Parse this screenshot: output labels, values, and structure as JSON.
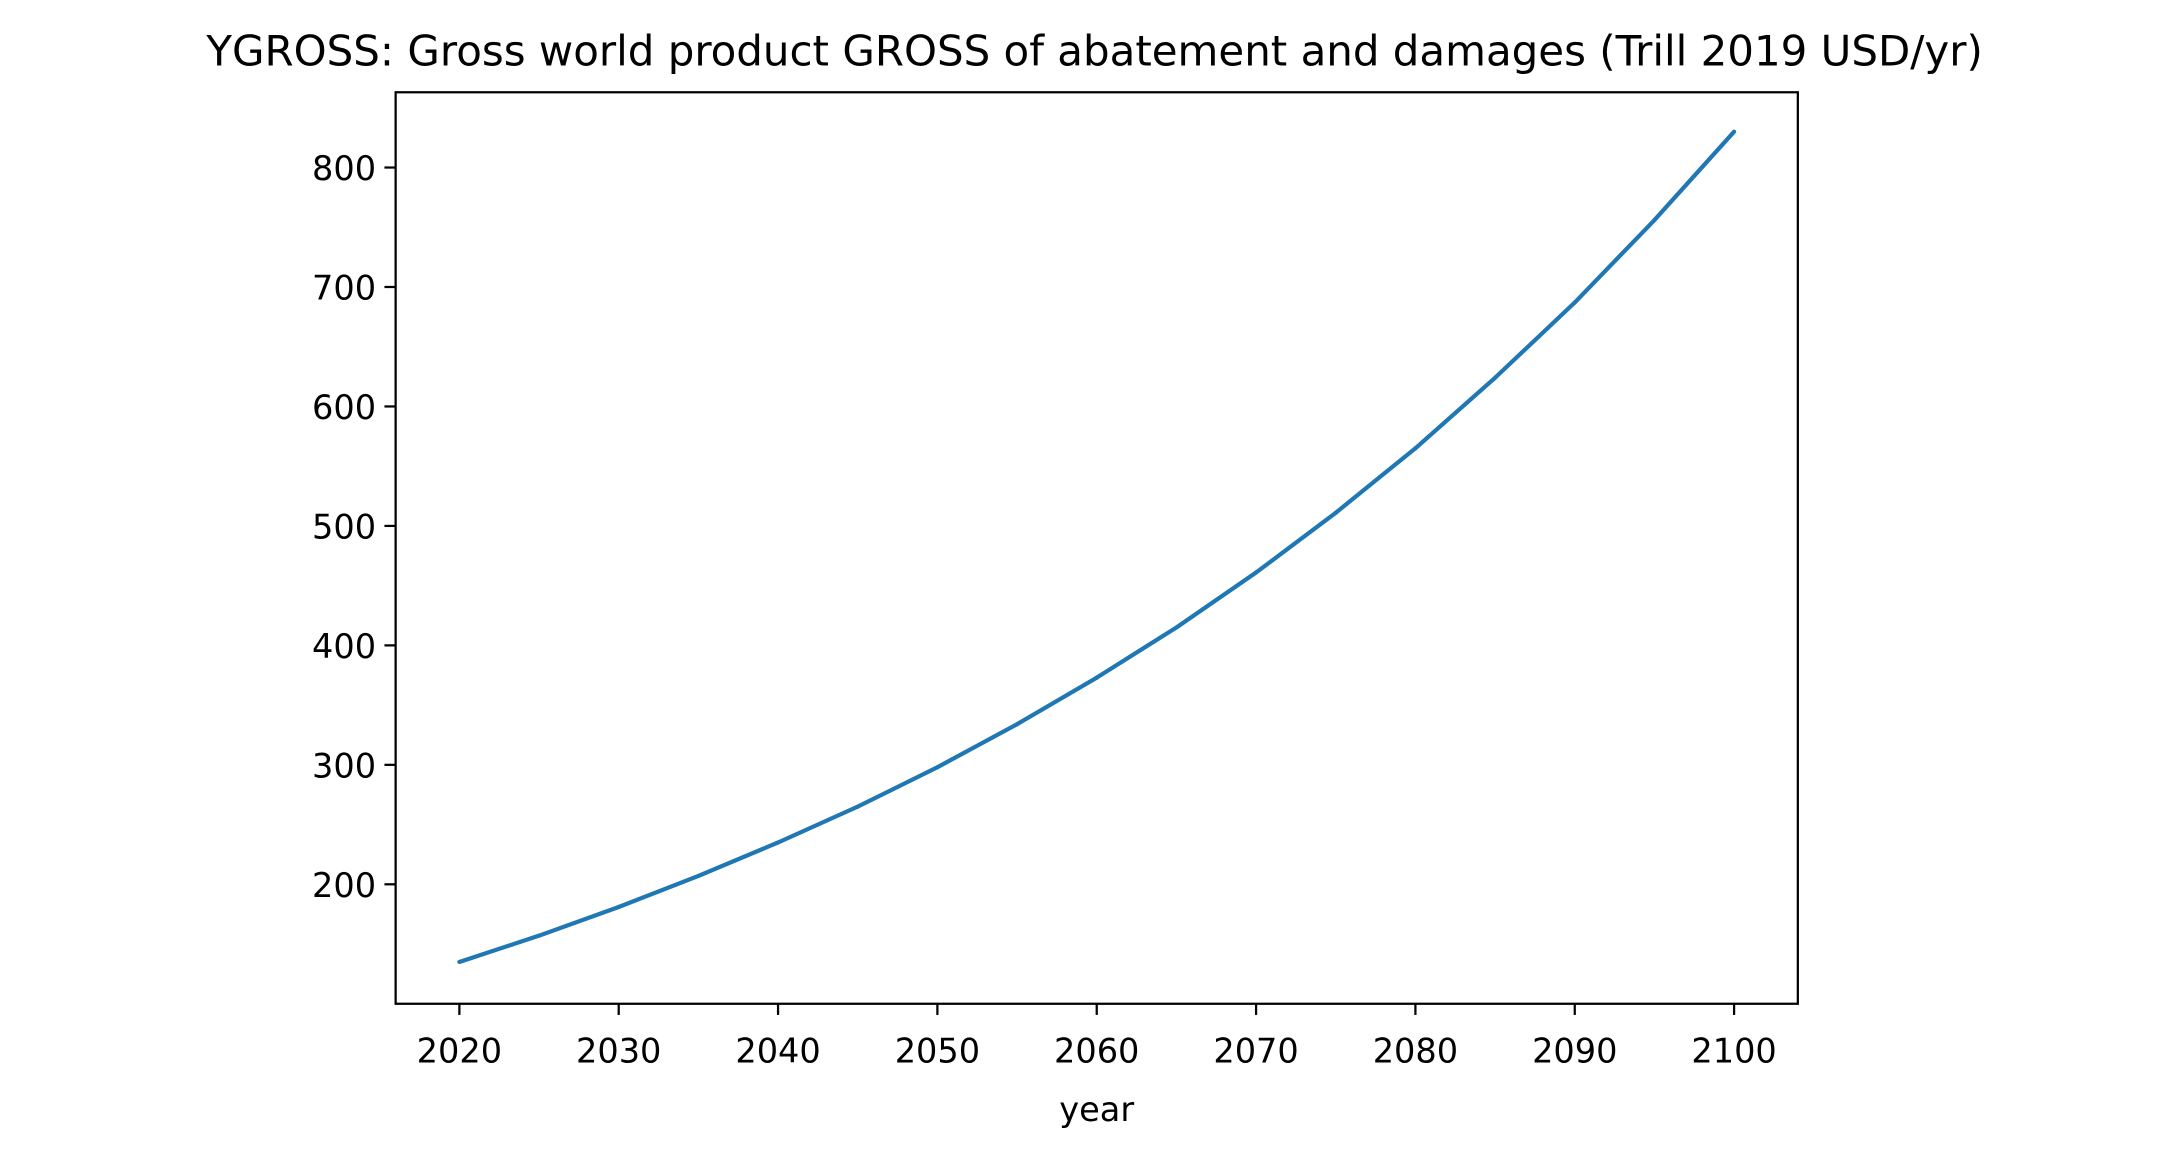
{
  "chart_data": {
    "type": "line",
    "title": "YGROSS: Gross world product GROSS of abatement and damages (Trill 2019 USD/yr)",
    "xlabel": "year",
    "ylabel": "",
    "xlim": [
      2016,
      2104
    ],
    "ylim": [
      100,
      863
    ],
    "xticks": [
      2020,
      2030,
      2040,
      2050,
      2060,
      2070,
      2080,
      2090,
      2100
    ],
    "yticks": [
      200,
      300,
      400,
      500,
      600,
      700,
      800
    ],
    "grid": false,
    "series": [
      {
        "color": "#1f77b4",
        "x": [
          2020,
          2025,
          2030,
          2035,
          2040,
          2045,
          2050,
          2055,
          2060,
          2065,
          2070,
          2075,
          2080,
          2085,
          2090,
          2095,
          2100
        ],
        "values": [
          135,
          157,
          181,
          207,
          235,
          265,
          298,
          334,
          373,
          415,
          461,
          511,
          565,
          624,
          687,
          756,
          830
        ]
      }
    ]
  }
}
